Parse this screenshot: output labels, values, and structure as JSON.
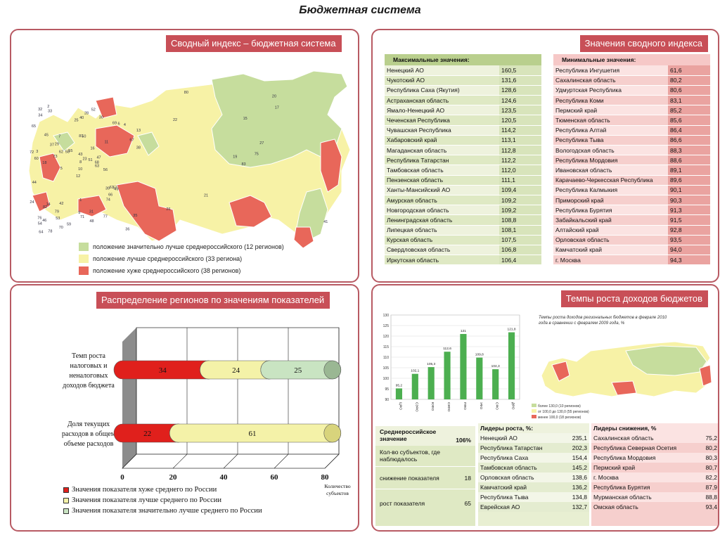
{
  "page_title": "Бюджетная система",
  "panel_map": {
    "tag": "Сводный индекс – бюджетная система",
    "legend": [
      {
        "label": "положение значительно лучше среднероссийского (12 регионов)",
        "color": "#c6dd9d"
      },
      {
        "label": "положение лучше среднероссийского (33 региона)",
        "color": "#f7f2a6"
      },
      {
        "label": "положение хуже среднероссийского (38 регионов)",
        "color": "#e8675a"
      }
    ],
    "region_numbers": [
      "83",
      "22",
      "19",
      "26",
      "27",
      "21",
      "20",
      "15",
      "17",
      "75",
      "80",
      "41",
      "18",
      "13",
      "12",
      "11",
      "78",
      "81",
      "16",
      "14",
      "55",
      "54",
      "53",
      "50",
      "47",
      "49",
      "45",
      "40",
      "60",
      "39",
      "38",
      "10",
      "9",
      "8",
      "7",
      "69",
      "42",
      "36",
      "35",
      "57",
      "52",
      "58",
      "73",
      "74",
      "70",
      "72",
      "68",
      "64",
      "71",
      "63",
      "82",
      "67",
      "65",
      "66",
      "77",
      "79",
      "33",
      "32",
      "31",
      "4",
      "28",
      "5",
      "3",
      "29",
      "6",
      "2",
      "30",
      "25",
      "23",
      "24",
      "1",
      "59",
      "61",
      "62",
      "76",
      "34",
      "37",
      "44",
      "43",
      "48",
      "51",
      "46",
      "56"
    ]
  },
  "panel_index": {
    "tag": "Значения сводного индекса",
    "max_header": "Максимальные значения:",
    "max_rows": [
      {
        "name": "Ненецкий АО",
        "value": "160,5"
      },
      {
        "name": "Чукотский АО",
        "value": "131,6"
      },
      {
        "name": "Республика Саха (Якутия)",
        "value": "128,6"
      },
      {
        "name": "Астраханская область",
        "value": "124,6"
      },
      {
        "name": "Ямало-Ненецкий АО",
        "value": "123,5"
      },
      {
        "name": "Чеченская Республика",
        "value": "120,5"
      },
      {
        "name": "Чувашская Республика",
        "value": "114,2"
      },
      {
        "name": "Хабаровский край",
        "value": "113,1"
      },
      {
        "name": "Магаданская область",
        "value": "112,8"
      },
      {
        "name": "Республика Татарстан",
        "value": "112,2"
      },
      {
        "name": "Тамбовская область",
        "value": "112,0"
      },
      {
        "name": "Пензенская область",
        "value": "111,1"
      },
      {
        "name": "Ханты-Мансийский АО",
        "value": "109,4"
      },
      {
        "name": "Амурская область",
        "value": "109,2"
      },
      {
        "name": "Новгородская область",
        "value": "109,2"
      },
      {
        "name": "Ленинградская область",
        "value": "108,8"
      },
      {
        "name": "Липецкая область",
        "value": "108,1"
      },
      {
        "name": "Курская область",
        "value": "107,5"
      },
      {
        "name": "Свердловская область",
        "value": "106,8"
      },
      {
        "name": "Иркутская область",
        "value": "106,4"
      }
    ],
    "min_header": "Минимальные значения:",
    "min_rows": [
      {
        "name": "Республика Ингушетия",
        "value": "61,6"
      },
      {
        "name": "Сахалинская область",
        "value": "80,2"
      },
      {
        "name": "Удмуртская Республика",
        "value": "80,6"
      },
      {
        "name": "Республика Коми",
        "value": "83,1"
      },
      {
        "name": "Пермский край",
        "value": "85,2"
      },
      {
        "name": "Тюменская область",
        "value": "85,6"
      },
      {
        "name": "Республика Алтай",
        "value": "86,4"
      },
      {
        "name": "Республика Тыва",
        "value": "86,6"
      },
      {
        "name": "Вологодская область",
        "value": "88,3"
      },
      {
        "name": "Республика Мордовия",
        "value": "88,6"
      },
      {
        "name": "Ивановская область",
        "value": "89,1"
      },
      {
        "name": "Карачаево-Черкесская Республика",
        "value": "89,6"
      },
      {
        "name": "Республика Калмыкия",
        "value": "90,1"
      },
      {
        "name": "Приморский край",
        "value": "90,3"
      },
      {
        "name": "Республика Бурятия",
        "value": "91,3"
      },
      {
        "name": "Забайкальский край",
        "value": "91,5"
      },
      {
        "name": "Алтайский край",
        "value": "92,8"
      },
      {
        "name": "Орловская область",
        "value": "93,5"
      },
      {
        "name": "Камчатский край",
        "value": "94,0"
      },
      {
        "name": "г. Москва",
        "value": "94,3"
      }
    ]
  },
  "panel_distribution": {
    "tag": "Распределение регионов по значениям показателей",
    "legend": [
      {
        "label": "Значения показателя хуже среднего по России",
        "color": "#e0201c"
      },
      {
        "label": "Значения показателя лучше среднего по России",
        "color": "#f4f2a8"
      },
      {
        "label": "Значения показателя значительно лучше среднего по России",
        "color": "#c9e4c2"
      }
    ],
    "x_unit_label": "Количество субъектов"
  },
  "panel_growth": {
    "tag": "Темпы роста доходов бюджетов",
    "map_title": "Темпы роста доходов региональных бюджетов в феврале 2010 года в сравнении с февралем 2009 года, %",
    "map_legend": [
      "более 130,0 (10 регионов)",
      "от 100,0 до 130,0 (55 регионов)",
      "менее 100,0 (18 регионов)"
    ],
    "avg_label": "Среднероссийское значение",
    "avg_value": "106%",
    "count_label": "Кол-во субъектов, где наблюдалось",
    "decrease_label": "снижение показателя",
    "decrease_value": "18",
    "increase_label": "рост показателя",
    "increase_value": "65",
    "leaders_up_header": "Лидеры роста, %:",
    "leaders_up": [
      {
        "name": "Ненецкий АО",
        "value": "235,1"
      },
      {
        "name": "Республика Татарстан",
        "value": "202,3"
      },
      {
        "name": "Республика Саха",
        "value": "154,4"
      },
      {
        "name": "Тамбовская область",
        "value": "145,2"
      },
      {
        "name": "Орловская область",
        "value": "138,6"
      },
      {
        "name": "Камчатский край",
        "value": "136,2"
      },
      {
        "name": "Республика Тыва",
        "value": "134,8"
      },
      {
        "name": "Еврейская АО",
        "value": "132,7"
      }
    ],
    "leaders_down_header": "Лидеры снижения, %",
    "leaders_down": [
      {
        "name": "Сахалинская область",
        "value": "75,2"
      },
      {
        "name": "Республика Северная Осетия",
        "value": "80,2"
      },
      {
        "name": "Республика Мордовия",
        "value": "80,3"
      },
      {
        "name": "Пермский край",
        "value": "80,7"
      },
      {
        "name": "г. Москва",
        "value": "82,2"
      },
      {
        "name": "Республика Бурятия",
        "value": "87,9"
      },
      {
        "name": "Мурманская  область",
        "value": "88,8"
      },
      {
        "name": "Омская область",
        "value": "93,4"
      }
    ]
  },
  "chart_data": [
    {
      "type": "bar",
      "orientation": "horizontal",
      "stacked": true,
      "categories": [
        "Темп роста налоговых и неналоговых доходов бюджета",
        "Доля текущих расходов в общем объеме расходов"
      ],
      "series": [
        {
          "name": "Значения показателя хуже среднего по России",
          "values": [
            34,
            22
          ],
          "color": "#e0201c"
        },
        {
          "name": "Значения показателя лучше среднего по России",
          "values": [
            24,
            61
          ],
          "color": "#f4f2a8"
        },
        {
          "name": "Значения показателя значительно лучше среднего по России",
          "values": [
            25,
            0
          ],
          "color": "#c9e4c2"
        }
      ],
      "xlim": [
        0,
        80
      ],
      "xticks": [
        0,
        20,
        40,
        60,
        80
      ],
      "xlabel": "Количество субъектов"
    },
    {
      "type": "bar",
      "categories": [
        "ЦФО",
        "СЗФО",
        "ЮФО",
        "СКФО",
        "ПФО",
        "УФО",
        "СФО",
        "ДФО"
      ],
      "values": [
        95.2,
        102.1,
        105.3,
        112.6,
        121.0,
        109.8,
        104.3,
        121.8
      ],
      "value_labels": [
        "95,2",
        "102,1",
        "105,3",
        "112,6",
        "121",
        "109,8",
        "104,3",
        "121,8"
      ],
      "ylim": [
        90,
        130
      ],
      "yticks": [
        90,
        95,
        100,
        105,
        110,
        115,
        120,
        125,
        130
      ],
      "color": "#4caf50"
    }
  ]
}
